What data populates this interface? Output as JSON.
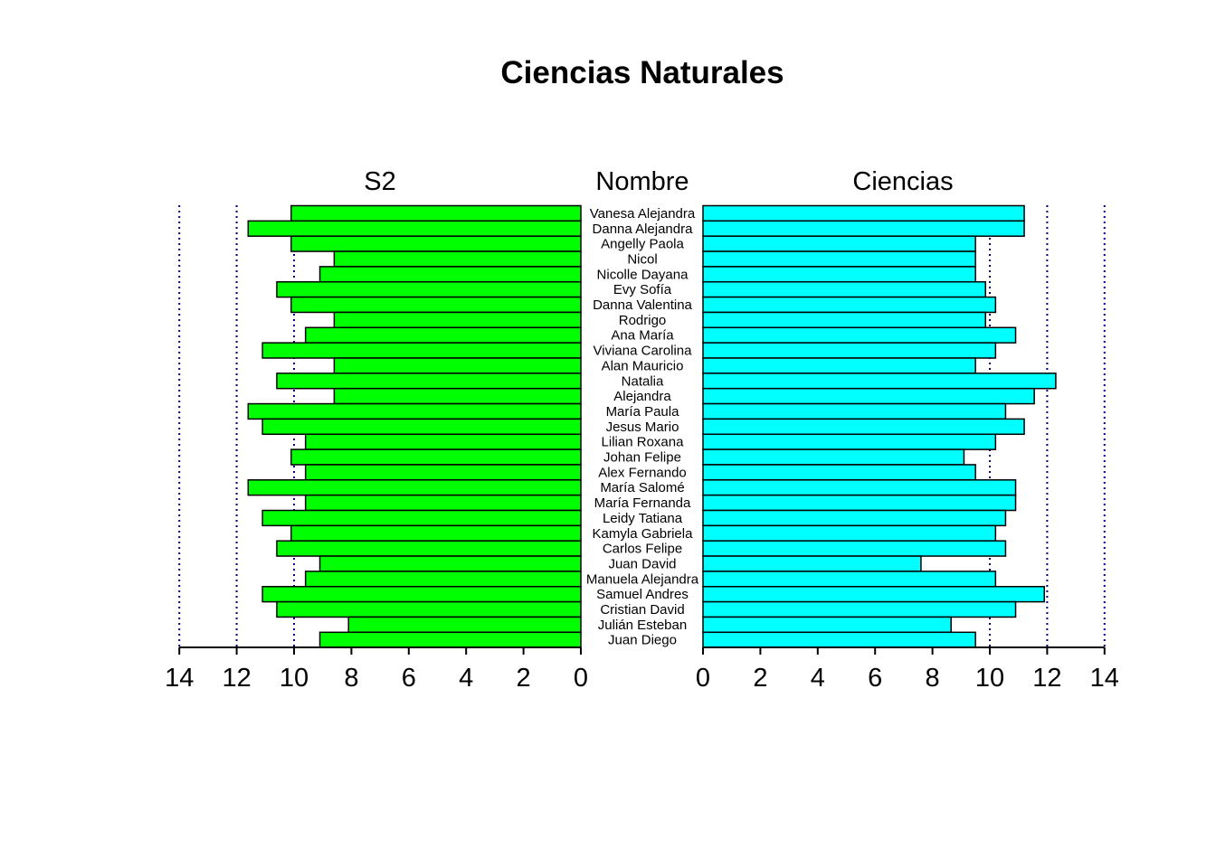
{
  "chart_data": {
    "type": "bar",
    "orientation": "horizontal-back-to-back",
    "title": "Ciencias Naturales",
    "center_label": "Nombre",
    "categories": [
      "Vanesa Alejandra",
      "Danna Alejandra",
      "Angelly Paola",
      "Nicol",
      "Nicolle Dayana",
      "Evy Sofía",
      "Danna Valentina",
      "Rodrigo",
      "Ana María",
      "Viviana Carolina",
      "Alan Mauricio",
      "Natalia",
      "Alejandra",
      "María Paula",
      "Jesus Mario",
      "Lilian Roxana",
      "Johan Felipe",
      "Alex Fernando",
      "María Salomé",
      "María Fernanda",
      "Leidy Tatiana",
      "Kamyla Gabriela",
      "Carlos Felipe",
      "Juan David",
      "Manuela Alejandra",
      "Samuel Andres",
      "Cristian David",
      "Julián Esteban",
      "Juan Diego"
    ],
    "series": [
      {
        "name": "S2",
        "side": "left",
        "color": "#00ff00",
        "values": [
          10.1,
          11.6,
          10.1,
          8.6,
          9.1,
          10.6,
          10.1,
          8.6,
          9.6,
          11.1,
          8.6,
          10.6,
          8.6,
          11.6,
          11.1,
          9.6,
          10.1,
          9.6,
          11.6,
          9.6,
          11.1,
          10.1,
          10.6,
          9.1,
          9.6,
          11.1,
          10.6,
          8.1,
          9.1
        ]
      },
      {
        "name": "Ciencias",
        "side": "right",
        "color": "#00ffff",
        "values": [
          11.2,
          11.2,
          9.5,
          9.5,
          9.5,
          9.85,
          10.2,
          9.85,
          10.9,
          10.2,
          9.5,
          12.3,
          11.55,
          10.55,
          11.2,
          10.2,
          9.1,
          9.5,
          10.9,
          10.9,
          10.55,
          10.2,
          10.55,
          7.6,
          10.2,
          11.9,
          10.9,
          8.65,
          9.5
        ]
      }
    ],
    "xlim": [
      0,
      14
    ],
    "ticks": [
      "0",
      "2",
      "4",
      "6",
      "8",
      "10",
      "12",
      "14"
    ],
    "grid": {
      "lines_at": [
        10,
        12,
        14
      ],
      "style": "dotted",
      "color": "#00008b"
    }
  }
}
